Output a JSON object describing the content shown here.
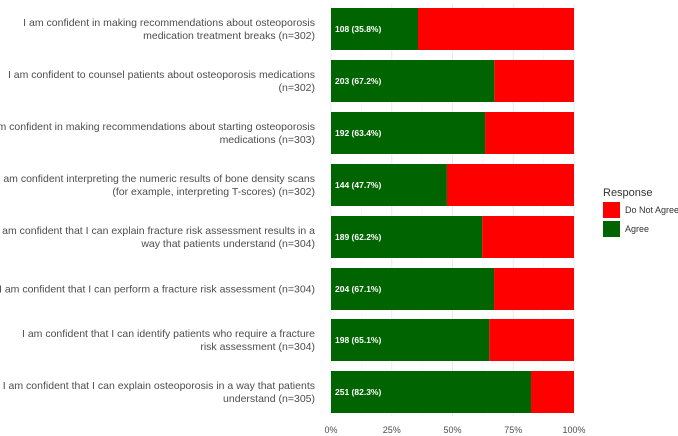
{
  "chart_data": {
    "type": "bar",
    "orientation": "horizontal",
    "stacked": true,
    "normalized": true,
    "categories": [
      [
        "I am confident in making recommendations about osteoporosis",
        "medication treatment breaks (n=302)"
      ],
      [
        "I am confident to counsel patients about osteoporosis medications",
        "(n=302)"
      ],
      [
        "I am confident in making recommendations about starting osteoporosis",
        "medications (n=303)"
      ],
      [
        "I am confident interpreting the numeric results of bone density scans",
        "(for example, interpreting T-scores) (n=302)"
      ],
      [
        "I am confident that I can explain fracture risk assessment results in a",
        "way that patients understand (n=304)"
      ],
      [
        "I am confident that I can perform a fracture risk assessment (n=304)"
      ],
      [
        "I am confident that I can identify patients who require a fracture",
        "risk assessment (n=304)"
      ],
      [
        "I am confident that I can explain osteoporosis in a way that patients",
        "understand (n=305)"
      ]
    ],
    "series": [
      {
        "name": "Agree",
        "color": "#006400",
        "values": [
          35.8,
          67.2,
          63.4,
          47.7,
          62.2,
          67.1,
          65.1,
          82.3
        ],
        "labels": [
          "108 (35.8%)",
          "203 (67.2%)",
          "192 (63.4%)",
          "144 (47.7%)",
          "189 (62.2%)",
          "204 (67.1%)",
          "198 (65.1%)",
          "251 (82.3%)"
        ]
      },
      {
        "name": "Do Not Agree",
        "color": "#ff0000",
        "values": [
          64.2,
          32.8,
          36.6,
          52.3,
          37.8,
          32.9,
          34.9,
          17.7
        ]
      }
    ],
    "xlim": [
      0,
      100
    ],
    "xticks": [
      "0%",
      "25%",
      "50%",
      "75%",
      "100%"
    ],
    "xlabel": "",
    "ylabel": "",
    "grid": true,
    "legend": {
      "title": "Response",
      "position": "right",
      "entries": [
        {
          "label": "Do Not Agree",
          "color": "#ff0000"
        },
        {
          "label": "Agree",
          "color": "#006400"
        }
      ]
    }
  }
}
